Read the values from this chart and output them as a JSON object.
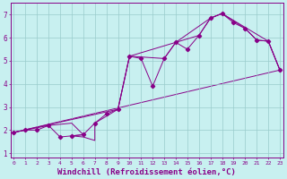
{
  "bg_color": "#c8f0f0",
  "line_color": "#880088",
  "grid_color": "#99cccc",
  "xlabel": "Windchill (Refroidissement éolien,°C)",
  "xlabel_fontsize": 6.5,
  "xlim": [
    0,
    23
  ],
  "ylim": [
    0.8,
    7.5
  ],
  "xticks": [
    0,
    1,
    2,
    3,
    4,
    5,
    6,
    7,
    8,
    9,
    10,
    11,
    12,
    13,
    14,
    15,
    16,
    17,
    18,
    19,
    20,
    21,
    22,
    23
  ],
  "yticks": [
    1,
    2,
    3,
    4,
    5,
    6,
    7
  ],
  "line1_x": [
    0,
    1,
    2,
    3,
    4,
    5,
    6,
    7,
    8,
    9,
    10,
    11,
    12,
    13,
    14,
    15,
    16,
    17,
    18,
    19,
    20,
    21,
    22,
    23
  ],
  "line1_y": [
    1.9,
    2.0,
    2.0,
    2.2,
    1.7,
    1.75,
    1.8,
    2.3,
    2.7,
    2.9,
    5.2,
    5.1,
    3.9,
    5.1,
    5.8,
    5.5,
    6.1,
    6.85,
    7.05,
    6.65,
    6.4,
    5.9,
    5.85,
    4.6
  ],
  "line2_x": [
    0,
    3,
    5,
    6,
    5,
    6,
    7,
    7,
    9,
    10,
    13,
    14,
    16,
    17,
    18,
    20,
    21,
    22,
    23
  ],
  "line2_y": [
    1.9,
    2.2,
    2.3,
    1.8,
    1.75,
    1.7,
    1.55,
    2.3,
    2.9,
    5.2,
    5.1,
    5.8,
    6.1,
    6.85,
    7.05,
    6.4,
    5.9,
    5.85,
    4.6
  ],
  "line3_x": [
    0,
    23
  ],
  "line3_y": [
    1.9,
    4.6
  ],
  "line4_x": [
    0,
    9,
    10,
    14,
    17,
    18,
    22,
    23
  ],
  "line4_y": [
    1.9,
    2.9,
    5.2,
    5.8,
    6.85,
    7.05,
    5.85,
    4.6
  ]
}
